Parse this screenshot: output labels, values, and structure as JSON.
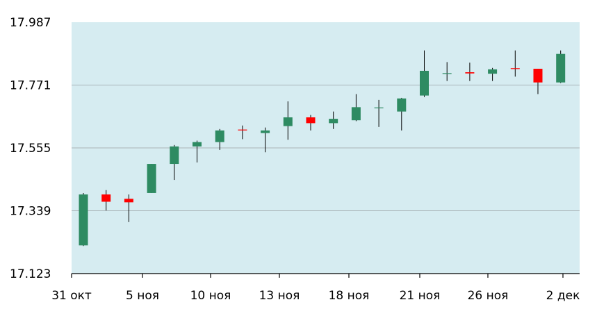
{
  "colors": {
    "plot_background": "#d6ecf1",
    "grid": "#a9b4b8",
    "axis": "#000000",
    "up": "#2e8b62",
    "down": "#ff0000",
    "wick": "#000000"
  },
  "chart_data": {
    "type": "candlestick",
    "title": "",
    "xlabel": "",
    "ylabel": "",
    "ylim": [
      17.123,
      17.987
    ],
    "yticks": [
      "17.987",
      "17.771",
      "17.555",
      "17.339",
      "17.123"
    ],
    "xticks": [
      "31 окт",
      "5 ноя",
      "10 ноя",
      "13 ноя",
      "18 ноя",
      "21 ноя",
      "26 ноя",
      "2 дек"
    ],
    "grid": true,
    "candles": [
      {
        "open": 17.22,
        "close": 17.395,
        "high": 17.4,
        "low": 17.218
      },
      {
        "open": 17.395,
        "close": 17.37,
        "high": 17.41,
        "low": 17.34
      },
      {
        "open": 17.38,
        "close": 17.368,
        "high": 17.395,
        "low": 17.3
      },
      {
        "open": 17.4,
        "close": 17.5,
        "high": 17.5,
        "low": 17.4
      },
      {
        "open": 17.5,
        "close": 17.56,
        "high": 17.565,
        "low": 17.445
      },
      {
        "open": 17.56,
        "close": 17.575,
        "high": 17.58,
        "low": 17.505
      },
      {
        "open": 17.575,
        "close": 17.615,
        "high": 17.62,
        "low": 17.548
      },
      {
        "open": 17.618,
        "close": 17.617,
        "high": 17.632,
        "low": 17.585
      },
      {
        "open": 17.606,
        "close": 17.615,
        "high": 17.625,
        "low": 17.54
      },
      {
        "open": 17.63,
        "close": 17.66,
        "high": 17.715,
        "low": 17.583
      },
      {
        "open": 17.66,
        "close": 17.64,
        "high": 17.668,
        "low": 17.615
      },
      {
        "open": 17.64,
        "close": 17.655,
        "high": 17.68,
        "low": 17.62
      },
      {
        "open": 17.65,
        "close": 17.695,
        "high": 17.74,
        "low": 17.647
      },
      {
        "open": 17.693,
        "close": 17.694,
        "high": 17.72,
        "low": 17.627
      },
      {
        "open": 17.68,
        "close": 17.725,
        "high": 17.727,
        "low": 17.615
      },
      {
        "open": 17.735,
        "close": 17.82,
        "high": 17.89,
        "low": 17.73
      },
      {
        "open": 17.81,
        "close": 17.812,
        "high": 17.85,
        "low": 17.785
      },
      {
        "open": 17.815,
        "close": 17.811,
        "high": 17.848,
        "low": 17.785
      },
      {
        "open": 17.81,
        "close": 17.825,
        "high": 17.83,
        "low": 17.785
      },
      {
        "open": 17.829,
        "close": 17.827,
        "high": 17.89,
        "low": 17.8
      },
      {
        "open": 17.827,
        "close": 17.78,
        "high": 17.827,
        "low": 17.74
      },
      {
        "open": 17.78,
        "close": 17.878,
        "high": 17.89,
        "low": 17.778
      }
    ]
  }
}
